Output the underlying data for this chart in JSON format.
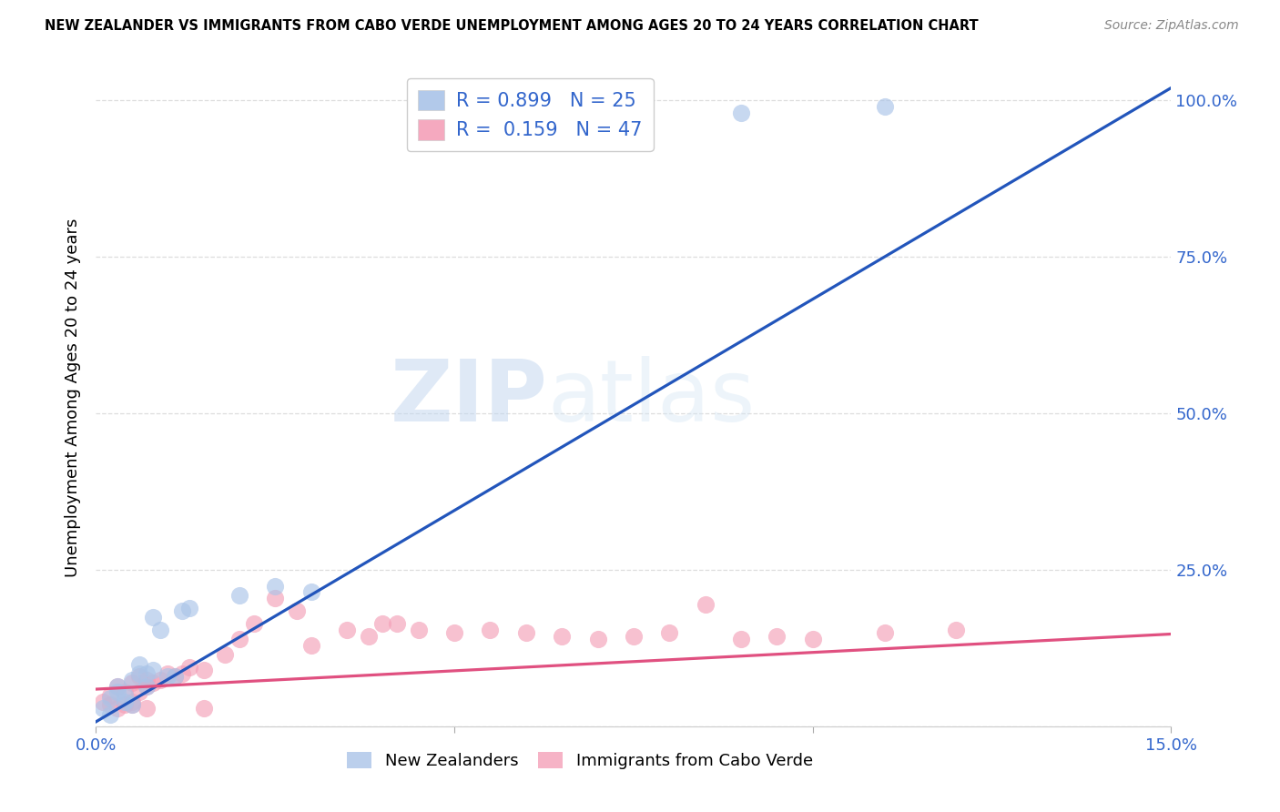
{
  "title": "NEW ZEALANDER VS IMMIGRANTS FROM CABO VERDE UNEMPLOYMENT AMONG AGES 20 TO 24 YEARS CORRELATION CHART",
  "source": "Source: ZipAtlas.com",
  "ylabel": "Unemployment Among Ages 20 to 24 years",
  "watermark_zip": "ZIP",
  "watermark_atlas": "atlas",
  "xlim": [
    0.0,
    0.15
  ],
  "ylim": [
    0.0,
    1.05
  ],
  "nz_color": "#aac4e8",
  "cv_color": "#f4a0b8",
  "nz_line_color": "#2255bb",
  "cv_line_color": "#e05080",
  "nz_R": 0.899,
  "nz_N": 25,
  "cv_R": 0.159,
  "cv_N": 47,
  "nz_scatter_x": [
    0.001,
    0.002,
    0.002,
    0.003,
    0.003,
    0.004,
    0.004,
    0.005,
    0.005,
    0.006,
    0.006,
    0.007,
    0.007,
    0.008,
    0.008,
    0.009,
    0.01,
    0.011,
    0.012,
    0.013,
    0.02,
    0.025,
    0.03,
    0.09,
    0.11
  ],
  "nz_scatter_y": [
    0.03,
    0.02,
    0.045,
    0.055,
    0.065,
    0.05,
    0.04,
    0.035,
    0.075,
    0.085,
    0.1,
    0.065,
    0.085,
    0.09,
    0.175,
    0.155,
    0.08,
    0.08,
    0.185,
    0.19,
    0.21,
    0.225,
    0.215,
    0.98,
    0.99
  ],
  "cv_scatter_x": [
    0.001,
    0.002,
    0.002,
    0.003,
    0.003,
    0.004,
    0.004,
    0.005,
    0.005,
    0.006,
    0.006,
    0.007,
    0.007,
    0.008,
    0.009,
    0.01,
    0.011,
    0.012,
    0.013,
    0.015,
    0.018,
    0.02,
    0.022,
    0.025,
    0.028,
    0.03,
    0.035,
    0.038,
    0.04,
    0.042,
    0.045,
    0.05,
    0.055,
    0.06,
    0.065,
    0.07,
    0.075,
    0.08,
    0.085,
    0.09,
    0.095,
    0.1,
    0.11,
    0.12,
    0.005,
    0.007,
    0.015
  ],
  "cv_scatter_y": [
    0.04,
    0.035,
    0.05,
    0.03,
    0.065,
    0.035,
    0.055,
    0.04,
    0.07,
    0.055,
    0.08,
    0.065,
    0.075,
    0.07,
    0.075,
    0.085,
    0.08,
    0.085,
    0.095,
    0.09,
    0.115,
    0.14,
    0.165,
    0.205,
    0.185,
    0.13,
    0.155,
    0.145,
    0.165,
    0.165,
    0.155,
    0.15,
    0.155,
    0.15,
    0.145,
    0.14,
    0.145,
    0.15,
    0.195,
    0.14,
    0.145,
    0.14,
    0.15,
    0.155,
    0.035,
    0.03,
    0.03
  ],
  "nz_line_x0": 0.0,
  "nz_line_y0": 0.008,
  "nz_line_x1": 0.15,
  "nz_line_y1": 1.02,
  "cv_line_x0": 0.0,
  "cv_line_y0": 0.06,
  "cv_line_x1": 0.15,
  "cv_line_y1": 0.148,
  "background_color": "#ffffff",
  "grid_color": "#dddddd",
  "tick_color": "#3366cc",
  "title_fontsize": 10.5,
  "source_fontsize": 10,
  "axis_fontsize": 13,
  "legend_fontsize": 15
}
